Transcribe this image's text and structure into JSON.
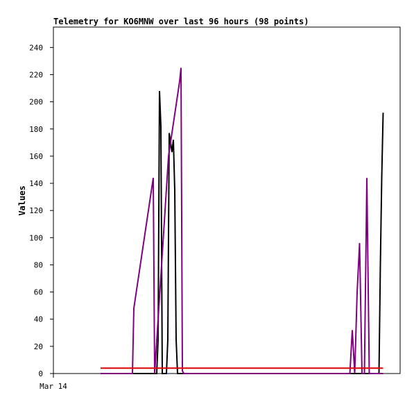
{
  "chart_data": {
    "type": "line",
    "title": "Telemetry for KO6MNW over last 96 hours (98 points)",
    "xlabel": "",
    "ylabel": "Values",
    "x_tick_labels": [
      "Mar 14"
    ],
    "y_ticks": [
      0,
      20,
      40,
      60,
      80,
      100,
      120,
      140,
      160,
      180,
      200,
      220,
      240
    ],
    "ylim": [
      0,
      255
    ],
    "xlim": [
      0,
      100
    ],
    "grid": false,
    "series": [
      {
        "color": "#000000",
        "x": [
          13.6,
          29.8,
          30.2,
          30.6,
          31.0,
          31.4,
          31.8,
          32.2,
          32.6,
          33.0,
          33.4,
          34.2,
          34.6,
          35.0,
          35.4,
          35.8,
          36.2,
          93.5,
          93.9,
          94.3,
          94.7,
          95.1
        ],
        "y": [
          0,
          0,
          25,
          208,
          182,
          0,
          0,
          0,
          0,
          25,
          177,
          163,
          172,
          135,
          25,
          0,
          0,
          0,
          0,
          80,
          145,
          192
        ]
      },
      {
        "color": "#800080",
        "x": [
          13.6,
          22.8,
          23.2,
          28.8,
          29.2,
          33.2,
          36.4,
          36.8,
          37.2,
          37.6,
          38.0,
          85.5,
          86.2,
          86.9,
          87.6,
          88.3,
          89.0,
          89.7,
          90.4,
          91.1,
          91.8,
          92.5,
          95.1
        ],
        "y": [
          0,
          0,
          48,
          144,
          0,
          160,
          215,
          225,
          2,
          0,
          0,
          0,
          32,
          0,
          60,
          96,
          0,
          0,
          144,
          0,
          0,
          0,
          0
        ]
      },
      {
        "color": "#dd0000",
        "x": [
          13.6,
          95.1
        ],
        "y": [
          4,
          4
        ]
      },
      {
        "color": "#4488ff",
        "x": [
          33.0,
          33.4
        ],
        "y": [
          0,
          0
        ]
      }
    ]
  }
}
